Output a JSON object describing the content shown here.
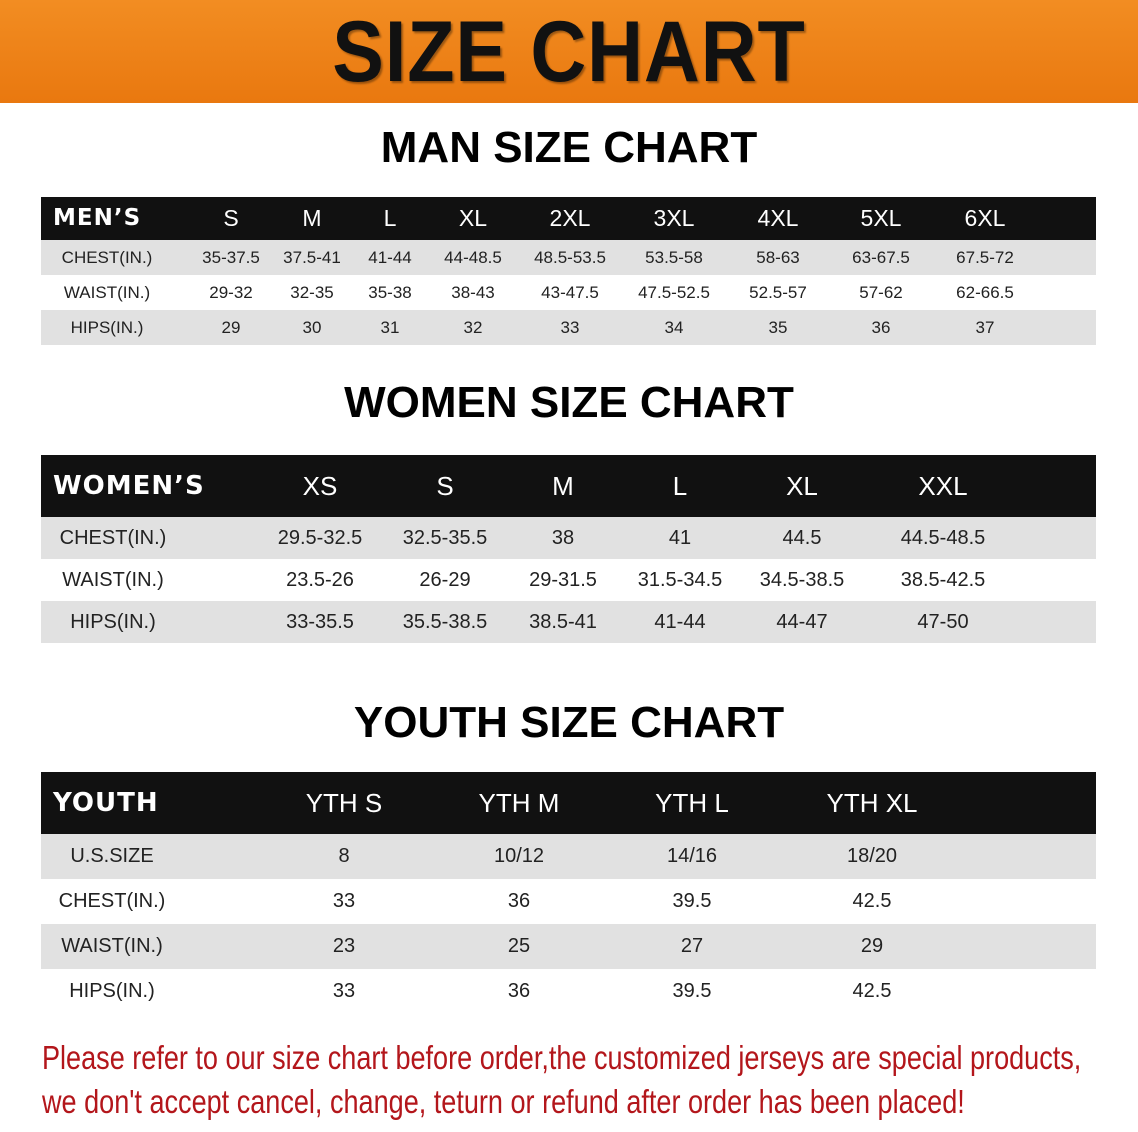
{
  "title": "SIZE CHART",
  "men": {
    "title": "MAN SIZE CHART",
    "header": [
      "MEN’S",
      "S",
      "M",
      "L",
      "XL",
      "2XL",
      "3XL",
      "4XL",
      "5XL",
      "6XL"
    ],
    "rows": [
      [
        "CHEST(IN.)",
        "35-37.5",
        "37.5-41",
        "41-44",
        "44-48.5",
        "48.5-53.5",
        "53.5-58",
        "58-63",
        "63-67.5",
        "67.5-72"
      ],
      [
        "WAIST(IN.)",
        "29-32",
        "32-35",
        "35-38",
        "38-43",
        "43-47.5",
        "47.5-52.5",
        "52.5-57",
        "57-62",
        "62-66.5"
      ],
      [
        "HIPS(IN.)",
        "29",
        "30",
        "31",
        "32",
        "33",
        "34",
        "35",
        "36",
        "37"
      ]
    ]
  },
  "women": {
    "title": "WOMEN SIZE CHART",
    "header": [
      "WOMEN’S",
      "XS",
      "S",
      "M",
      "L",
      "XL",
      "XXL"
    ],
    "rows": [
      [
        "CHEST(IN.)",
        "29.5-32.5",
        "32.5-35.5",
        "38",
        "41",
        "44.5",
        "44.5-48.5"
      ],
      [
        "WAIST(IN.)",
        "23.5-26",
        "26-29",
        "29-31.5",
        "31.5-34.5",
        "34.5-38.5",
        "38.5-42.5"
      ],
      [
        "HIPS(IN.)",
        "33-35.5",
        "35.5-38.5",
        "38.5-41",
        "41-44",
        "44-47",
        "47-50"
      ]
    ]
  },
  "youth": {
    "title": "YOUTH SIZE CHART",
    "header": [
      "YOUTH",
      "YTH S",
      "YTH M",
      "YTH L",
      "YTH XL"
    ],
    "rows": [
      [
        "U.S.SIZE",
        "8",
        "10/12",
        "14/16",
        "18/20"
      ],
      [
        "CHEST(IN.)",
        "33",
        "36",
        "39.5",
        "42.5"
      ],
      [
        "WAIST(IN.)",
        "23",
        "25",
        "27",
        "29"
      ],
      [
        "HIPS(IN.)",
        "33",
        "36",
        "39.5",
        "42.5"
      ]
    ]
  },
  "footer": {
    "line1": "Please refer to our size chart before order,the customized jerseys are special products,",
    "line2": "we don't accept cancel, change, teturn or refund after order has been placed!"
  },
  "colors": {
    "banner": "#ee8419",
    "footer_text": "#b3161b",
    "header_bg": "#111111",
    "row_gray": "#e1e1e1"
  }
}
